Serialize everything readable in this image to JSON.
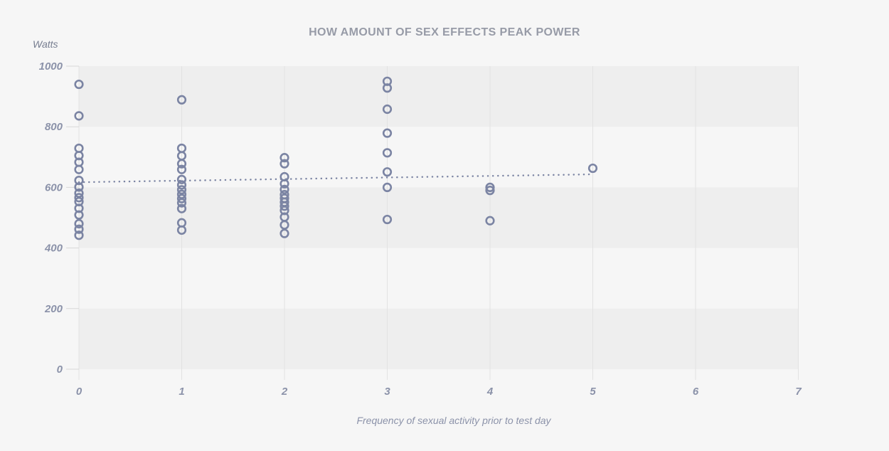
{
  "page": {
    "title": "HOW AMOUNT OF SEX EFFECTS PEAK POWER"
  },
  "chart_data": {
    "type": "scatter",
    "title": "HOW AMOUNT OF SEX EFFECTS PEAK POWER",
    "xlabel": "Frequency of sexual activity prior to test day",
    "ylabel": "Watts",
    "xlim": [
      0,
      7
    ],
    "ylim": [
      0,
      1000
    ],
    "xticks": [
      0,
      1,
      2,
      3,
      4,
      5,
      6,
      7
    ],
    "yticks": [
      0,
      200,
      400,
      600,
      800,
      1000
    ],
    "legend_position": "none",
    "grid": "vertical gridlines with alternating horizontal shaded bands",
    "band_ranges": [
      [
        800,
        1000
      ],
      [
        400,
        600
      ],
      [
        0,
        200
      ]
    ],
    "marker": "open-circle",
    "points_by_x": [
      {
        "x": 0,
        "values": [
          940,
          836,
          729,
          705,
          683,
          659,
          623,
          601,
          581,
          566,
          553,
          531,
          509,
          480,
          462,
          442
        ]
      },
      {
        "x": 1,
        "values": [
          889,
          729,
          704,
          678,
          659,
          626,
          608,
          592,
          577,
          563,
          549,
          530,
          483,
          459
        ]
      },
      {
        "x": 2,
        "values": [
          698,
          678,
          635,
          612,
          593,
          576,
          564,
          551,
          538,
          524,
          502,
          476,
          448
        ]
      },
      {
        "x": 3,
        "values": [
          950,
          928,
          858,
          779,
          714,
          651,
          600,
          494
        ]
      },
      {
        "x": 4,
        "values": [
          600,
          590,
          490
        ]
      },
      {
        "x": 5,
        "values": [
          663
        ]
      }
    ],
    "trend_line": {
      "style": "dotted",
      "x": [
        0,
        5
      ],
      "y": [
        617,
        643
      ]
    },
    "colors": {
      "background": "#f6f6f6",
      "band": "#eeeeee",
      "gridline": "#e2e2e2",
      "tick_stub": "#d8d8d8",
      "point_stroke": "#7b84a3",
      "trend_line": "#7b84a3",
      "tick_text": "#8b92a9",
      "title_text": "#979ba7"
    }
  }
}
